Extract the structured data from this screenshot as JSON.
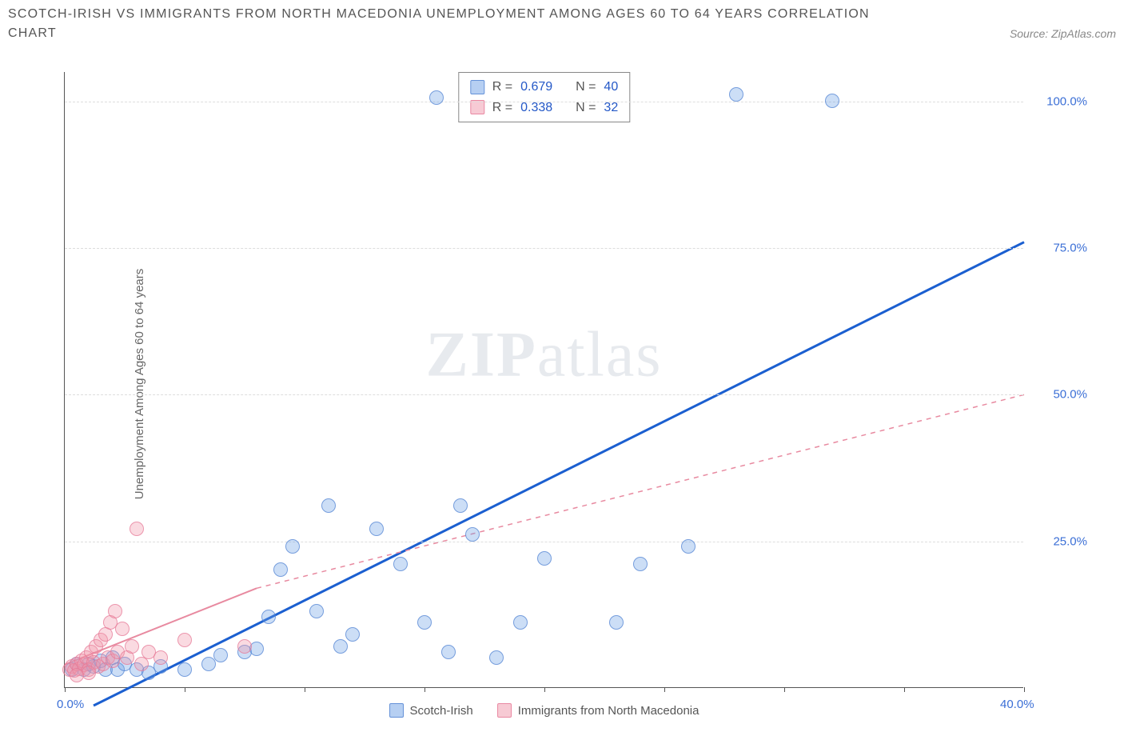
{
  "title": "SCOTCH-IRISH VS IMMIGRANTS FROM NORTH MACEDONIA UNEMPLOYMENT AMONG AGES 60 TO 64 YEARS CORRELATION CHART",
  "source": "Source: ZipAtlas.com",
  "y_axis_label": "Unemployment Among Ages 60 to 64 years",
  "watermark_a": "ZIP",
  "watermark_b": "atlas",
  "chart": {
    "type": "scatter",
    "xlim": [
      0,
      40
    ],
    "ylim": [
      0,
      105
    ],
    "x_ticks": [
      0,
      5,
      10,
      15,
      20,
      25,
      30,
      35,
      40
    ],
    "x_tick_labels": {
      "0": "0.0%",
      "40": "40.0%"
    },
    "y_ticks": [
      25,
      50,
      75,
      100
    ],
    "y_tick_labels": {
      "25": "25.0%",
      "50": "50.0%",
      "75": "75.0%",
      "100": "100.0%"
    },
    "grid_color": "#dddddd",
    "background_color": "#ffffff",
    "series": [
      {
        "name": "Scotch-Irish",
        "color_fill": "rgba(110,160,230,0.35)",
        "color_stroke": "rgba(80,130,210,0.7)",
        "trend_color": "#1b5fd0",
        "trend_style": "solid",
        "trend": {
          "x1": 1.2,
          "y1": -3,
          "x2": 40,
          "y2": 76
        },
        "R": "0.679",
        "N": "40",
        "points": [
          [
            0.3,
            3
          ],
          [
            0.5,
            4
          ],
          [
            0.8,
            3
          ],
          [
            1,
            4
          ],
          [
            1.2,
            3.5
          ],
          [
            1.5,
            4.5
          ],
          [
            1.7,
            3
          ],
          [
            2,
            5
          ],
          [
            2.2,
            3
          ],
          [
            2.5,
            4
          ],
          [
            3,
            3
          ],
          [
            3.5,
            2.5
          ],
          [
            4,
            3.5
          ],
          [
            5,
            3
          ],
          [
            6,
            4
          ],
          [
            6.5,
            5.5
          ],
          [
            7.5,
            6
          ],
          [
            8,
            6.5
          ],
          [
            8.5,
            12
          ],
          [
            9,
            20
          ],
          [
            9.5,
            24
          ],
          [
            10.5,
            13
          ],
          [
            11,
            31
          ],
          [
            11.5,
            7
          ],
          [
            12,
            9
          ],
          [
            13,
            27
          ],
          [
            14,
            21
          ],
          [
            15,
            11
          ],
          [
            16.5,
            31
          ],
          [
            17,
            26
          ],
          [
            18,
            5
          ],
          [
            19,
            11
          ],
          [
            20,
            22
          ],
          [
            23,
            11
          ],
          [
            24,
            21
          ],
          [
            26,
            24
          ],
          [
            28,
            101
          ],
          [
            32,
            100
          ],
          [
            15.5,
            100.5
          ],
          [
            16,
            6
          ]
        ]
      },
      {
        "name": "Immigrants from North Macedonia",
        "color_fill": "rgba(240,150,170,0.35)",
        "color_stroke": "rgba(230,120,150,0.7)",
        "trend_color": "#e88aa0",
        "trend_style": "solid_then_dashed",
        "trend_solid": {
          "x1": 0,
          "y1": 4,
          "x2": 8,
          "y2": 17
        },
        "trend_dashed": {
          "x1": 8,
          "y1": 17,
          "x2": 40,
          "y2": 50
        },
        "R": "0.338",
        "N": "32",
        "points": [
          [
            0.2,
            3
          ],
          [
            0.3,
            3.5
          ],
          [
            0.4,
            2.8
          ],
          [
            0.5,
            4
          ],
          [
            0.6,
            3.2
          ],
          [
            0.7,
            4.5
          ],
          [
            0.8,
            3.8
          ],
          [
            0.9,
            5
          ],
          [
            1,
            3
          ],
          [
            1.1,
            6
          ],
          [
            1.2,
            4.2
          ],
          [
            1.3,
            7
          ],
          [
            1.4,
            3.5
          ],
          [
            1.5,
            8
          ],
          [
            1.6,
            4
          ],
          [
            1.7,
            9
          ],
          [
            1.8,
            5
          ],
          [
            1.9,
            11
          ],
          [
            2,
            4.5
          ],
          [
            2.1,
            13
          ],
          [
            2.2,
            6
          ],
          [
            2.4,
            10
          ],
          [
            2.6,
            5
          ],
          [
            2.8,
            7
          ],
          [
            3,
            27
          ],
          [
            3.2,
            4
          ],
          [
            3.5,
            6
          ],
          [
            4,
            5
          ],
          [
            5,
            8
          ],
          [
            7.5,
            7
          ],
          [
            1.0,
            2.5
          ],
          [
            0.5,
            2
          ]
        ]
      }
    ]
  },
  "legend": {
    "stats_labels": {
      "R": "R =",
      "N": "N ="
    },
    "bottom": [
      {
        "swatch": "blue",
        "label": "Scotch-Irish"
      },
      {
        "swatch": "pink",
        "label": "Immigrants from North Macedonia"
      }
    ]
  }
}
